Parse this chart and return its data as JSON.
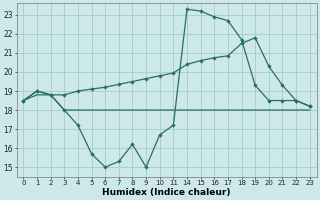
{
  "xlabel": "Humidex (Indice chaleur)",
  "bg_color": "#cce8e8",
  "grid_color": "#aacece",
  "line_color": "#2a6e62",
  "x_labels": [
    "0",
    "1",
    "2",
    "3",
    "4",
    "5",
    "6",
    "7",
    "8",
    "9",
    "10",
    "11",
    "14",
    "15",
    "16",
    "17",
    "18",
    "19",
    "20",
    "21",
    "22",
    "23"
  ],
  "ylim": [
    14.5,
    23.6
  ],
  "yticks": [
    15,
    16,
    17,
    18,
    19,
    20,
    21,
    22,
    23
  ],
  "line1_y": [
    18.5,
    18.8,
    18.8,
    18.0,
    18.0,
    18.0,
    18.0,
    18.0,
    18.0,
    18.0,
    18.0,
    18.0,
    18.0,
    18.0,
    18.0,
    18.0,
    18.0,
    18.0,
    18.0,
    18.0,
    18.0,
    18.0
  ],
  "line2_y": [
    18.5,
    19.0,
    18.8,
    18.8,
    19.0,
    19.1,
    19.2,
    19.35,
    19.5,
    19.65,
    19.8,
    19.95,
    20.4,
    20.6,
    20.75,
    20.85,
    21.5,
    21.8,
    20.3,
    19.3,
    18.5,
    18.2
  ],
  "line3_y": [
    18.5,
    19.0,
    18.8,
    18.0,
    17.2,
    15.7,
    15.0,
    15.3,
    16.2,
    15.0,
    16.7,
    17.2,
    23.3,
    23.2,
    22.9,
    22.7,
    21.7,
    19.3,
    18.5,
    18.5,
    18.5,
    18.2
  ]
}
